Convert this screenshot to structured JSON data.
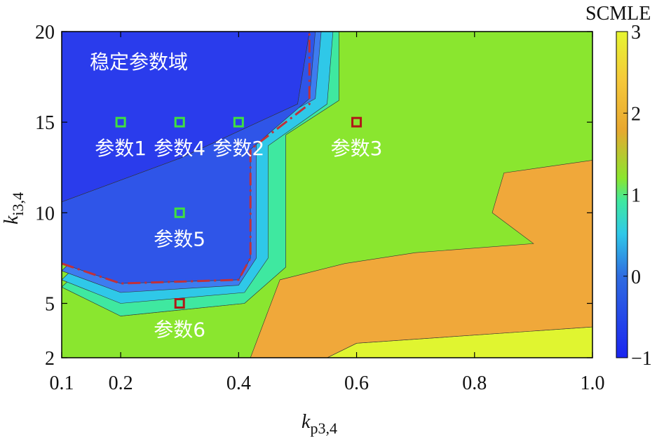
{
  "chart_data": {
    "type": "heatmap",
    "subtype": "filled-contour",
    "xlabel": {
      "main": "k",
      "sub": "p3,4"
    },
    "ylabel": {
      "main": "k",
      "sub": "i3,4"
    },
    "xlim": [
      0.1,
      1.0
    ],
    "ylim": [
      2,
      20
    ],
    "x_ticks": [
      0.1,
      0.2,
      0.4,
      0.6,
      0.8,
      1.0
    ],
    "x_tick_labels": [
      "0.1",
      "0.2",
      "0.4",
      "0.6",
      "0.8",
      "1.0"
    ],
    "y_ticks": [
      2,
      5,
      10,
      15,
      20
    ],
    "y_tick_labels": [
      "2",
      "5",
      "10",
      "15",
      "20"
    ],
    "colorbar": {
      "title": "SCMLE",
      "range": [
        -1,
        3
      ],
      "ticks": [
        -1,
        0,
        1,
        2,
        3
      ],
      "tick_labels": [
        "−1",
        "0",
        "1",
        "2",
        "3"
      ],
      "colors": [
        "#2b3ff0",
        "#2f6ce0",
        "#3d9cf0",
        "#2fd6e0",
        "#3fe8a0",
        "#8ae62f",
        "#e8a830",
        "#f5c83a",
        "#e0f530"
      ]
    },
    "contour_levels": [
      {
        "value": -0.8,
        "color": "#2a3cec",
        "boundary": [
          [
            0.1,
            20
          ],
          [
            0.52,
            20
          ],
          [
            0.5,
            16
          ],
          [
            0.3,
            13
          ],
          [
            0.1,
            10.6
          ]
        ]
      },
      {
        "value": -0.4,
        "color": "#2f55e8",
        "boundary": [
          [
            0.1,
            10.6
          ],
          [
            0.3,
            13
          ],
          [
            0.5,
            16
          ],
          [
            0.52,
            20
          ],
          [
            0.53,
            20
          ],
          [
            0.52,
            16.3
          ],
          [
            0.42,
            13.5
          ],
          [
            0.42,
            7.5
          ],
          [
            0.4,
            6.3
          ],
          [
            0.2,
            6.1
          ],
          [
            0.1,
            7.2
          ]
        ]
      },
      {
        "value": 0.0,
        "color": "#3d7cf0",
        "boundary": [
          [
            0.53,
            20
          ],
          [
            0.54,
            20
          ],
          [
            0.53,
            16.3
          ],
          [
            0.43,
            14.5
          ],
          [
            0.43,
            7.5
          ],
          [
            0.4,
            6
          ],
          [
            0.2,
            5.6
          ],
          [
            0.1,
            6.8
          ]
        ]
      },
      {
        "value": 0.5,
        "color": "#2fc8e8",
        "boundary": [
          [
            0.54,
            20
          ],
          [
            0.56,
            20
          ],
          [
            0.55,
            16
          ],
          [
            0.45,
            13.7
          ],
          [
            0.45,
            7.5
          ],
          [
            0.41,
            5.6
          ],
          [
            0.2,
            5
          ],
          [
            0.1,
            6.3
          ]
        ]
      },
      {
        "value": 1.0,
        "color": "#3fe8a0",
        "boundary": [
          [
            0.56,
            20
          ],
          [
            0.57,
            20
          ],
          [
            0.57,
            16.2
          ],
          [
            0.48,
            14.3
          ],
          [
            0.48,
            7
          ],
          [
            0.41,
            5
          ],
          [
            0.2,
            4.3
          ],
          [
            0.1,
            5.9
          ]
        ]
      },
      {
        "value": 1.3,
        "color": "#8ae62f",
        "boundary": []
      },
      {
        "value": 2.0,
        "color": "#f0a83a",
        "boundary": [
          [
            0.42,
            2
          ],
          [
            0.47,
            6.3
          ],
          [
            0.58,
            7.2
          ],
          [
            0.7,
            7.8
          ],
          [
            0.9,
            8.3
          ],
          [
            0.83,
            10
          ],
          [
            0.85,
            12.2
          ],
          [
            1.0,
            12.9
          ],
          [
            1.0,
            3.7
          ],
          [
            0.6,
            2.8
          ],
          [
            0.55,
            2
          ]
        ]
      },
      {
        "value": 2.5,
        "color": "#e0f530",
        "boundary": [
          [
            0.55,
            2
          ],
          [
            0.6,
            2.8
          ],
          [
            1.0,
            3.7
          ],
          [
            1.0,
            2
          ]
        ]
      }
    ],
    "stability_boundary": {
      "style": "dash-dot",
      "color": "#c0303a",
      "points": [
        [
          0.1,
          7.2
        ],
        [
          0.2,
          6.1
        ],
        [
          0.4,
          6.3
        ],
        [
          0.42,
          7.5
        ],
        [
          0.42,
          13.5
        ],
        [
          0.52,
          16
        ],
        [
          0.52,
          20
        ]
      ]
    },
    "region_label": "稳定参数域",
    "parameter_points": [
      {
        "label": "参数1",
        "x": 0.2,
        "y": 15,
        "stable": true
      },
      {
        "label": "参数4",
        "x": 0.3,
        "y": 15,
        "stable": true
      },
      {
        "label": "参数2",
        "x": 0.4,
        "y": 15,
        "stable": true
      },
      {
        "label": "参数3",
        "x": 0.6,
        "y": 15,
        "stable": false
      },
      {
        "label": "参数5",
        "x": 0.3,
        "y": 10,
        "stable": true
      },
      {
        "label": "参数6",
        "x": 0.3,
        "y": 5,
        "stable": false
      }
    ],
    "marker_colors": {
      "stable": "#3fe040",
      "unstable": "#b01818"
    },
    "grid": false,
    "legend": "none"
  }
}
